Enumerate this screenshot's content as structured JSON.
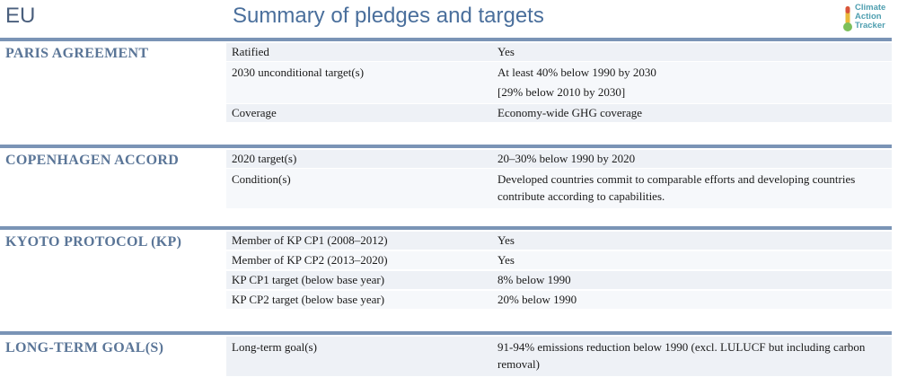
{
  "header": {
    "country": "EU",
    "title": "Summary of pledges and targets",
    "logo_lines": [
      "Climate",
      "Action",
      "Tracker"
    ]
  },
  "sections": [
    {
      "title": "PARIS AGREEMENT",
      "rows": [
        {
          "label": "Ratified",
          "value": "Yes"
        },
        {
          "label": "2030 unconditional target(s)",
          "value": "At least 40% below 1990 by 2030",
          "value2": "[29% below 2010 by 2030]"
        },
        {
          "label": "Coverage",
          "value": "Economy-wide GHG coverage"
        }
      ]
    },
    {
      "title": "COPENHAGEN ACCORD",
      "rows": [
        {
          "label": "2020 target(s)",
          "value": "20–30% below 1990 by 2020"
        },
        {
          "label": "Condition(s)",
          "value": "Developed countries commit to comparable efforts and developing countries contribute according to capabilities."
        }
      ]
    },
    {
      "title": "KYOTO PROTOCOL (KP)",
      "rows": [
        {
          "label": "Member of KP CP1 (2008–2012)",
          "value": "Yes"
        },
        {
          "label": "Member of KP CP2 (2013–2020)",
          "value": "Yes"
        },
        {
          "label": "KP CP1 target (below base year)",
          "value": "8% below 1990"
        },
        {
          "label": "KP CP2 target (below base year)",
          "value": "20% below 1990"
        }
      ]
    },
    {
      "title": "LONG-TERM GOAL(S)",
      "rows": [
        {
          "label": "Long-term goal(s)",
          "value": "91-94% emissions reduction below 1990 (excl. LULUCF but including carbon removal)"
        }
      ]
    }
  ]
}
